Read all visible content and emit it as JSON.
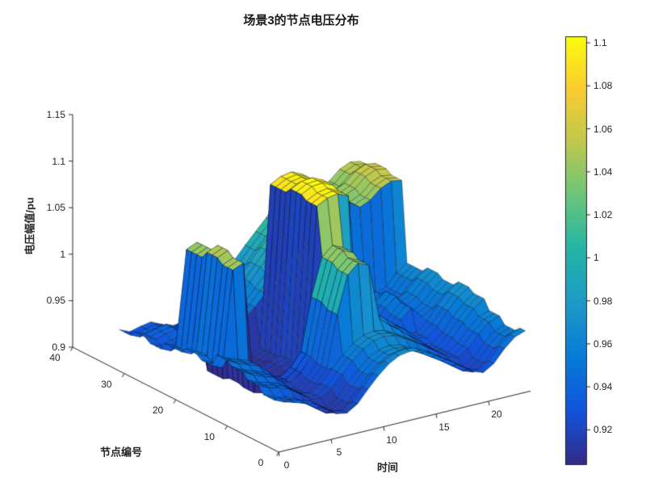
{
  "chart_data": {
    "type": "surface",
    "title": "场景3的节点电压分布",
    "xlabel": "时间",
    "ylabel": "节点编号",
    "zlabel": "电压幅值/pu",
    "x_tick_labels": [
      "0",
      "5",
      "10",
      "15",
      "20"
    ],
    "y_tick_labels": [
      "0",
      "10",
      "20",
      "30",
      "40"
    ],
    "z_tick_labels": [
      "0.9",
      "0.95",
      "1",
      "1.05",
      "1.1",
      "1.15"
    ],
    "xlim": [
      0,
      24
    ],
    "ylim": [
      0,
      40
    ],
    "zlim": [
      0.9,
      1.15
    ],
    "legend": "none",
    "colorbar": {
      "tick_labels": [
        "0.92",
        "0.94",
        "0.96",
        "0.98",
        "1",
        "1.02",
        "1.04",
        "1.06",
        "1.08",
        "1.1"
      ],
      "domain": [
        0.904,
        1.103
      ]
    },
    "colormap": "parula",
    "colormap_stops": [
      [
        0.0,
        [
          53,
          42,
          135
        ]
      ],
      [
        0.125,
        [
          17,
          83,
          221
        ]
      ],
      [
        0.25,
        [
          7,
          123,
          215
        ]
      ],
      [
        0.375,
        [
          28,
          154,
          199
        ]
      ],
      [
        0.5,
        [
          35,
          180,
          168
        ]
      ],
      [
        0.625,
        [
          103,
          197,
          124
        ]
      ],
      [
        0.75,
        [
          189,
          200,
          79
        ]
      ],
      [
        0.875,
        [
          249,
          204,
          48
        ]
      ],
      [
        1.0,
        [
          249,
          251,
          14
        ]
      ]
    ],
    "time": [
      1,
      2,
      3,
      4,
      5,
      6,
      7,
      8,
      9,
      10,
      11,
      12,
      13,
      14,
      15,
      16,
      17,
      18,
      19,
      20,
      21,
      22,
      23,
      24
    ],
    "nodes": [
      1,
      2,
      3,
      4,
      5,
      6,
      7,
      8,
      9,
      10,
      11,
      12,
      13,
      14,
      15,
      16,
      17,
      18,
      19,
      20,
      21,
      22,
      23,
      24,
      25,
      26,
      27,
      28,
      29,
      30,
      31,
      32,
      33
    ],
    "voltage": [
      [
        0.95,
        0.945,
        0.942,
        0.938,
        0.93,
        0.922,
        0.92,
        0.927,
        0.94,
        0.952,
        0.962,
        0.968,
        0.97,
        0.968,
        0.962,
        0.955,
        0.948,
        0.94,
        0.932,
        0.928,
        0.935,
        0.948,
        0.958,
        0.962
      ],
      [
        0.95,
        0.945,
        0.942,
        0.938,
        0.93,
        0.922,
        0.92,
        0.927,
        0.94,
        0.952,
        0.962,
        0.968,
        0.97,
        0.968,
        0.962,
        0.955,
        0.948,
        0.94,
        0.932,
        0.928,
        0.935,
        0.948,
        0.958,
        0.962
      ],
      [
        0.945,
        0.94,
        0.937,
        0.933,
        0.925,
        0.917,
        0.915,
        0.922,
        0.935,
        0.947,
        0.957,
        0.963,
        0.965,
        0.963,
        0.957,
        0.95,
        0.943,
        0.935,
        0.927,
        0.923,
        0.93,
        0.943,
        0.953,
        0.957
      ],
      [
        0.945,
        0.94,
        0.937,
        0.933,
        0.925,
        0.917,
        0.915,
        0.922,
        0.935,
        0.947,
        0.957,
        0.963,
        0.965,
        0.963,
        0.957,
        0.95,
        0.943,
        0.935,
        0.927,
        0.923,
        0.93,
        0.943,
        0.953,
        0.957
      ],
      [
        0.945,
        0.94,
        0.937,
        0.933,
        0.925,
        0.917,
        0.915,
        0.922,
        0.935,
        0.947,
        0.957,
        0.963,
        0.965,
        0.963,
        0.957,
        0.95,
        0.943,
        0.935,
        0.927,
        0.923,
        0.93,
        0.943,
        0.953,
        0.957
      ],
      [
        0.952,
        0.947,
        0.944,
        0.94,
        0.932,
        0.924,
        0.922,
        0.929,
        0.942,
        0.954,
        0.964,
        0.97,
        0.972,
        0.97,
        0.964,
        0.957,
        0.95,
        0.942,
        0.934,
        0.93,
        0.937,
        0.95,
        0.96,
        0.964
      ],
      [
        0.952,
        0.947,
        0.944,
        0.94,
        0.932,
        0.924,
        0.922,
        0.929,
        0.942,
        0.954,
        0.964,
        0.97,
        0.972,
        0.97,
        0.964,
        0.957,
        0.95,
        0.942,
        0.934,
        0.93,
        0.937,
        0.95,
        0.96,
        0.964
      ],
      [
        0.952,
        0.947,
        0.944,
        0.94,
        0.932,
        0.924,
        0.922,
        0.929,
        0.942,
        0.954,
        0.964,
        0.97,
        0.972,
        0.97,
        0.964,
        0.957,
        0.95,
        0.942,
        0.934,
        0.93,
        0.937,
        0.95,
        0.96,
        0.964
      ],
      [
        0.958,
        0.952,
        0.948,
        0.944,
        0.934,
        0.922,
        0.918,
        0.926,
        0.94,
        0.995,
        1.035,
        1.045,
        1.04,
        0.98,
        0.97,
        0.962,
        0.952,
        0.944,
        0.934,
        0.93,
        0.94,
        0.954,
        0.966,
        0.974
      ],
      [
        0.958,
        0.952,
        0.948,
        0.944,
        0.934,
        0.922,
        0.918,
        0.926,
        0.94,
        0.995,
        1.035,
        1.045,
        1.04,
        0.98,
        0.97,
        0.962,
        0.952,
        0.944,
        0.934,
        0.93,
        0.94,
        0.954,
        0.966,
        0.974
      ],
      [
        0.958,
        0.952,
        0.948,
        0.944,
        0.934,
        0.922,
        0.918,
        0.926,
        0.94,
        0.995,
        1.035,
        1.045,
        1.04,
        0.98,
        0.97,
        0.962,
        0.952,
        0.944,
        0.934,
        0.93,
        0.94,
        0.954,
        0.966,
        0.974
      ],
      [
        0.962,
        0.956,
        0.952,
        0.948,
        0.938,
        0.926,
        0.922,
        0.93,
        0.944,
        1.0,
        1.04,
        1.05,
        1.045,
        0.984,
        0.974,
        0.966,
        0.956,
        0.948,
        0.938,
        0.934,
        0.944,
        0.958,
        0.97,
        0.978
      ],
      [
        0.962,
        0.956,
        0.952,
        0.948,
        0.938,
        0.926,
        0.922,
        0.93,
        0.944,
        1.0,
        1.04,
        1.05,
        1.045,
        0.984,
        0.974,
        0.966,
        0.956,
        0.948,
        0.938,
        0.934,
        0.944,
        0.958,
        0.97,
        0.978
      ],
      [
        0.962,
        0.956,
        0.952,
        0.948,
        0.938,
        0.926,
        0.922,
        0.93,
        0.944,
        1.0,
        1.04,
        1.05,
        1.045,
        0.984,
        0.974,
        0.966,
        0.956,
        0.948,
        0.938,
        0.934,
        0.944,
        0.958,
        0.97,
        0.978
      ],
      [
        0.948,
        0.943,
        1.045,
        1.05,
        0.908,
        0.905,
        0.906,
        0.91,
        0.914,
        0.918,
        1.092,
        1.098,
        1.1,
        1.095,
        0.952,
        0.945,
        0.94,
        0.936,
        0.948,
        0.958,
        0.946,
        0.952,
        0.964,
        0.972
      ],
      [
        0.948,
        0.943,
        1.045,
        1.05,
        0.908,
        0.905,
        0.906,
        0.91,
        0.914,
        0.918,
        1.092,
        1.098,
        1.1,
        1.095,
        0.952,
        0.945,
        0.94,
        0.936,
        0.948,
        0.958,
        0.946,
        0.952,
        0.964,
        0.972
      ],
      [
        0.948,
        0.943,
        1.045,
        1.05,
        0.908,
        0.905,
        0.906,
        0.91,
        0.914,
        0.918,
        1.092,
        1.098,
        1.1,
        1.095,
        0.952,
        0.945,
        0.94,
        0.936,
        0.948,
        0.958,
        0.946,
        0.952,
        0.964,
        0.972
      ],
      [
        0.952,
        0.947,
        1.05,
        1.055,
        0.91,
        0.907,
        0.908,
        0.912,
        0.916,
        0.92,
        1.096,
        1.102,
        1.103,
        1.098,
        0.956,
        0.949,
        0.944,
        0.94,
        0.952,
        0.962,
        0.95,
        0.956,
        0.968,
        0.976
      ],
      [
        0.952,
        0.947,
        1.05,
        1.055,
        0.91,
        0.907,
        0.908,
        0.912,
        0.916,
        0.92,
        1.096,
        1.102,
        1.103,
        1.098,
        0.956,
        0.949,
        0.944,
        0.94,
        0.952,
        0.962,
        0.95,
        0.956,
        0.968,
        0.976
      ],
      [
        0.952,
        0.947,
        1.05,
        1.055,
        0.91,
        0.907,
        0.908,
        0.912,
        0.916,
        0.92,
        1.096,
        1.102,
        1.103,
        1.098,
        0.956,
        0.949,
        0.944,
        0.94,
        0.952,
        0.962,
        0.95,
        0.956,
        0.968,
        0.976
      ],
      [
        0.946,
        0.941,
        1.042,
        1.047,
        0.906,
        0.904,
        0.905,
        0.909,
        0.913,
        0.917,
        1.09,
        1.096,
        1.098,
        1.093,
        0.95,
        0.943,
        0.938,
        0.934,
        0.946,
        0.956,
        0.944,
        0.95,
        0.962,
        0.97
      ],
      [
        0.946,
        0.941,
        1.042,
        1.047,
        0.906,
        0.904,
        0.905,
        0.909,
        0.913,
        0.917,
        1.09,
        1.096,
        1.098,
        1.093,
        0.95,
        0.943,
        0.938,
        0.934,
        0.946,
        0.956,
        0.944,
        0.95,
        0.962,
        0.97
      ],
      [
        0.946,
        0.941,
        1.042,
        1.047,
        0.906,
        0.904,
        0.905,
        0.909,
        0.913,
        0.917,
        1.09,
        1.096,
        1.098,
        1.093,
        0.95,
        0.943,
        0.938,
        0.934,
        0.946,
        0.956,
        0.944,
        0.95,
        0.962,
        0.97
      ],
      [
        0.946,
        0.941,
        1.042,
        1.047,
        0.906,
        0.904,
        0.905,
        0.909,
        0.913,
        0.917,
        1.09,
        1.096,
        1.098,
        1.093,
        0.95,
        0.943,
        0.938,
        0.934,
        0.946,
        0.956,
        0.944,
        0.95,
        0.962,
        0.97
      ],
      [
        0.938,
        0.933,
        0.936,
        0.938,
        0.933,
        0.928,
        0.93,
        0.936,
        0.948,
        0.958,
        0.97,
        0.983,
        0.996,
        1.008,
        1.02,
        1.033,
        1.043,
        1.05,
        1.046,
        1.038,
        1.043,
        1.053,
        1.058,
        1.056
      ],
      [
        0.938,
        0.933,
        0.936,
        0.938,
        0.933,
        0.928,
        0.93,
        0.936,
        0.948,
        0.958,
        0.97,
        0.983,
        0.996,
        1.008,
        1.02,
        1.033,
        1.043,
        1.05,
        1.046,
        1.038,
        1.043,
        1.053,
        1.058,
        1.056
      ],
      [
        0.938,
        0.933,
        0.936,
        0.938,
        0.933,
        0.928,
        0.93,
        0.936,
        0.948,
        0.958,
        0.97,
        0.983,
        0.996,
        1.008,
        1.02,
        1.033,
        1.043,
        1.05,
        1.046,
        1.038,
        1.043,
        1.053,
        1.058,
        1.056
      ],
      [
        0.942,
        0.937,
        0.94,
        0.942,
        0.937,
        0.932,
        0.934,
        0.94,
        0.952,
        0.962,
        0.974,
        0.987,
        1.0,
        1.012,
        1.024,
        1.037,
        1.047,
        1.054,
        1.05,
        1.042,
        1.047,
        1.057,
        1.062,
        1.06
      ],
      [
        0.942,
        0.937,
        0.94,
        0.942,
        0.937,
        0.932,
        0.934,
        0.94,
        0.952,
        0.962,
        0.974,
        0.987,
        1.0,
        1.012,
        1.024,
        1.037,
        1.047,
        1.054,
        1.05,
        1.042,
        1.047,
        1.057,
        1.062,
        1.06
      ],
      [
        0.942,
        0.937,
        0.94,
        0.942,
        0.937,
        0.932,
        0.934,
        0.94,
        0.952,
        0.962,
        0.974,
        0.987,
        1.0,
        1.012,
        1.024,
        1.037,
        1.047,
        1.054,
        1.05,
        1.042,
        1.047,
        1.057,
        1.062,
        1.06
      ],
      [
        0.936,
        0.931,
        0.934,
        0.936,
        0.931,
        0.926,
        0.928,
        0.934,
        0.946,
        0.956,
        0.968,
        0.981,
        0.994,
        1.006,
        1.018,
        1.031,
        1.041,
        1.048,
        1.044,
        1.036,
        1.041,
        1.051,
        1.056,
        1.054
      ],
      [
        0.936,
        0.931,
        0.934,
        0.936,
        0.931,
        0.926,
        0.928,
        0.934,
        0.946,
        0.956,
        0.968,
        0.981,
        0.994,
        1.006,
        1.018,
        1.031,
        1.041,
        1.048,
        1.044,
        1.036,
        1.041,
        1.051,
        1.056,
        1.054
      ],
      [
        0.936,
        0.931,
        0.934,
        0.936,
        0.931,
        0.926,
        0.928,
        0.934,
        0.946,
        0.956,
        0.968,
        0.981,
        0.994,
        1.006,
        1.018,
        1.031,
        1.041,
        1.048,
        1.044,
        1.036,
        1.041,
        1.051,
        1.056,
        1.054
      ]
    ]
  }
}
